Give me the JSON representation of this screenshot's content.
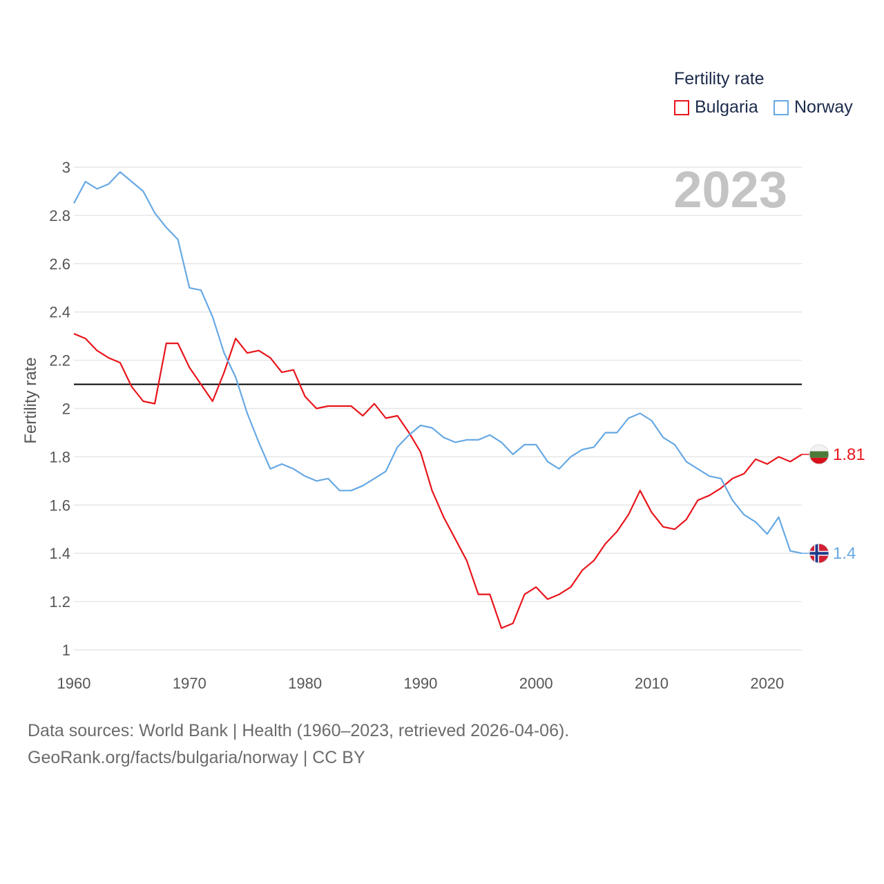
{
  "legend": {
    "title": "Fertility rate",
    "items": [
      {
        "label": "Bulgaria",
        "color": "#e8141a"
      },
      {
        "label": "Norway",
        "color": "#66a8e4"
      }
    ]
  },
  "year_label": "2023",
  "footer": {
    "line1": "Data sources: World Bank | Health (1960–2023, retrieved 2026-04-06).",
    "line2": "GeoRank.org/facts/bulgaria/norway | CC BY"
  },
  "chart_data": {
    "type": "line",
    "title": "Fertility rate",
    "xlabel": "",
    "ylabel": "Fertility rate",
    "xlim": [
      1960,
      2023
    ],
    "ylim": [
      1,
      3
    ],
    "yticks": [
      "1",
      "1.2",
      "1.4",
      "1.6",
      "1.8",
      "2",
      "2.2",
      "2.4",
      "2.6",
      "2.8",
      "3"
    ],
    "xticks": [
      "1960",
      "1970",
      "1980",
      "1990",
      "2000",
      "2010",
      "2020"
    ],
    "reference_line": {
      "y": 2.1,
      "color": "#000000"
    },
    "x": [
      1960,
      1961,
      1962,
      1963,
      1964,
      1965,
      1966,
      1967,
      1968,
      1969,
      1970,
      1971,
      1972,
      1973,
      1974,
      1975,
      1976,
      1977,
      1978,
      1979,
      1980,
      1981,
      1982,
      1983,
      1984,
      1985,
      1986,
      1987,
      1988,
      1989,
      1990,
      1991,
      1992,
      1993,
      1994,
      1995,
      1996,
      1997,
      1998,
      1999,
      2000,
      2001,
      2002,
      2003,
      2004,
      2005,
      2006,
      2007,
      2008,
      2009,
      2010,
      2011,
      2012,
      2013,
      2014,
      2015,
      2016,
      2017,
      2018,
      2019,
      2020,
      2021,
      2022,
      2023
    ],
    "series": [
      {
        "name": "Bulgaria",
        "color": "#e8141a",
        "end_label": "1.81",
        "values": [
          2.31,
          2.29,
          2.24,
          2.21,
          2.19,
          2.09,
          2.03,
          2.02,
          2.27,
          2.27,
          2.17,
          2.1,
          2.03,
          2.15,
          2.29,
          2.23,
          2.24,
          2.21,
          2.15,
          2.16,
          2.05,
          2.0,
          2.01,
          2.01,
          2.01,
          1.97,
          2.02,
          1.96,
          1.97,
          1.9,
          1.82,
          1.66,
          1.55,
          1.46,
          1.37,
          1.23,
          1.23,
          1.09,
          1.11,
          1.23,
          1.26,
          1.21,
          1.23,
          1.26,
          1.33,
          1.37,
          1.44,
          1.49,
          1.56,
          1.66,
          1.57,
          1.51,
          1.5,
          1.54,
          1.62,
          1.64,
          1.67,
          1.71,
          1.73,
          1.79,
          1.77,
          1.8,
          1.78,
          1.81
        ]
      },
      {
        "name": "Norway",
        "color": "#66a8e4",
        "end_label": "1.4",
        "values": [
          2.85,
          2.94,
          2.91,
          2.93,
          2.98,
          2.94,
          2.9,
          2.81,
          2.75,
          2.7,
          2.5,
          2.49,
          2.38,
          2.23,
          2.13,
          1.98,
          1.86,
          1.75,
          1.77,
          1.75,
          1.72,
          1.7,
          1.71,
          1.66,
          1.66,
          1.68,
          1.71,
          1.74,
          1.84,
          1.89,
          1.93,
          1.92,
          1.88,
          1.86,
          1.87,
          1.87,
          1.89,
          1.86,
          1.81,
          1.85,
          1.85,
          1.78,
          1.75,
          1.8,
          1.83,
          1.84,
          1.9,
          1.9,
          1.96,
          1.98,
          1.95,
          1.88,
          1.85,
          1.78,
          1.75,
          1.72,
          1.71,
          1.62,
          1.56,
          1.53,
          1.48,
          1.55,
          1.41,
          1.4
        ]
      }
    ]
  }
}
